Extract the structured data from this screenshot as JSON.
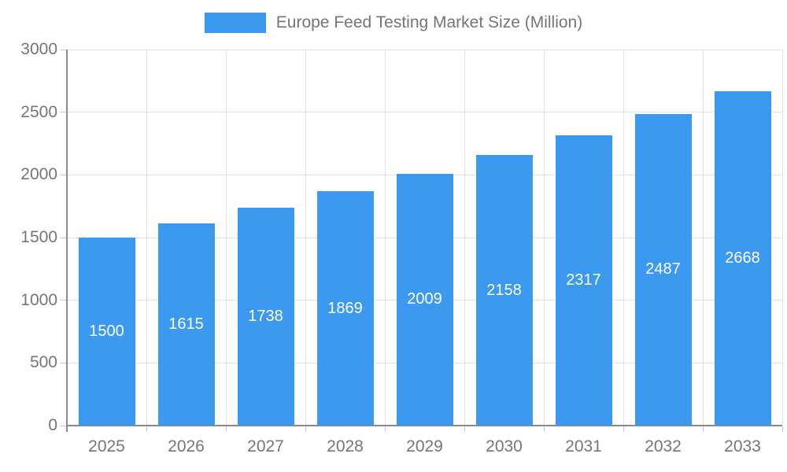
{
  "chart_data": {
    "type": "bar",
    "title": "Europe Feed Testing Market Size (Million)",
    "categories": [
      "2025",
      "2026",
      "2027",
      "2028",
      "2029",
      "2030",
      "2031",
      "2032",
      "2033"
    ],
    "values": [
      1500,
      1615,
      1738,
      1869,
      2009,
      2158,
      2317,
      2487,
      2668
    ],
    "xlabel": "",
    "ylabel": "",
    "ylim": [
      0,
      3000
    ],
    "ytick_step": 500,
    "ytick_labels": [
      "0",
      "500",
      "1000",
      "1500",
      "2000",
      "2500",
      "3000"
    ],
    "grid": true,
    "legend_position": "top",
    "value_labels_shown": true,
    "colors": {
      "bar": "#3B99F0",
      "value_label": "#FFFFFF",
      "axis_text": "#757575",
      "grid": "#E2E2E2",
      "axis_line": "#8A8A8A",
      "background": "#FFFFFF"
    }
  }
}
